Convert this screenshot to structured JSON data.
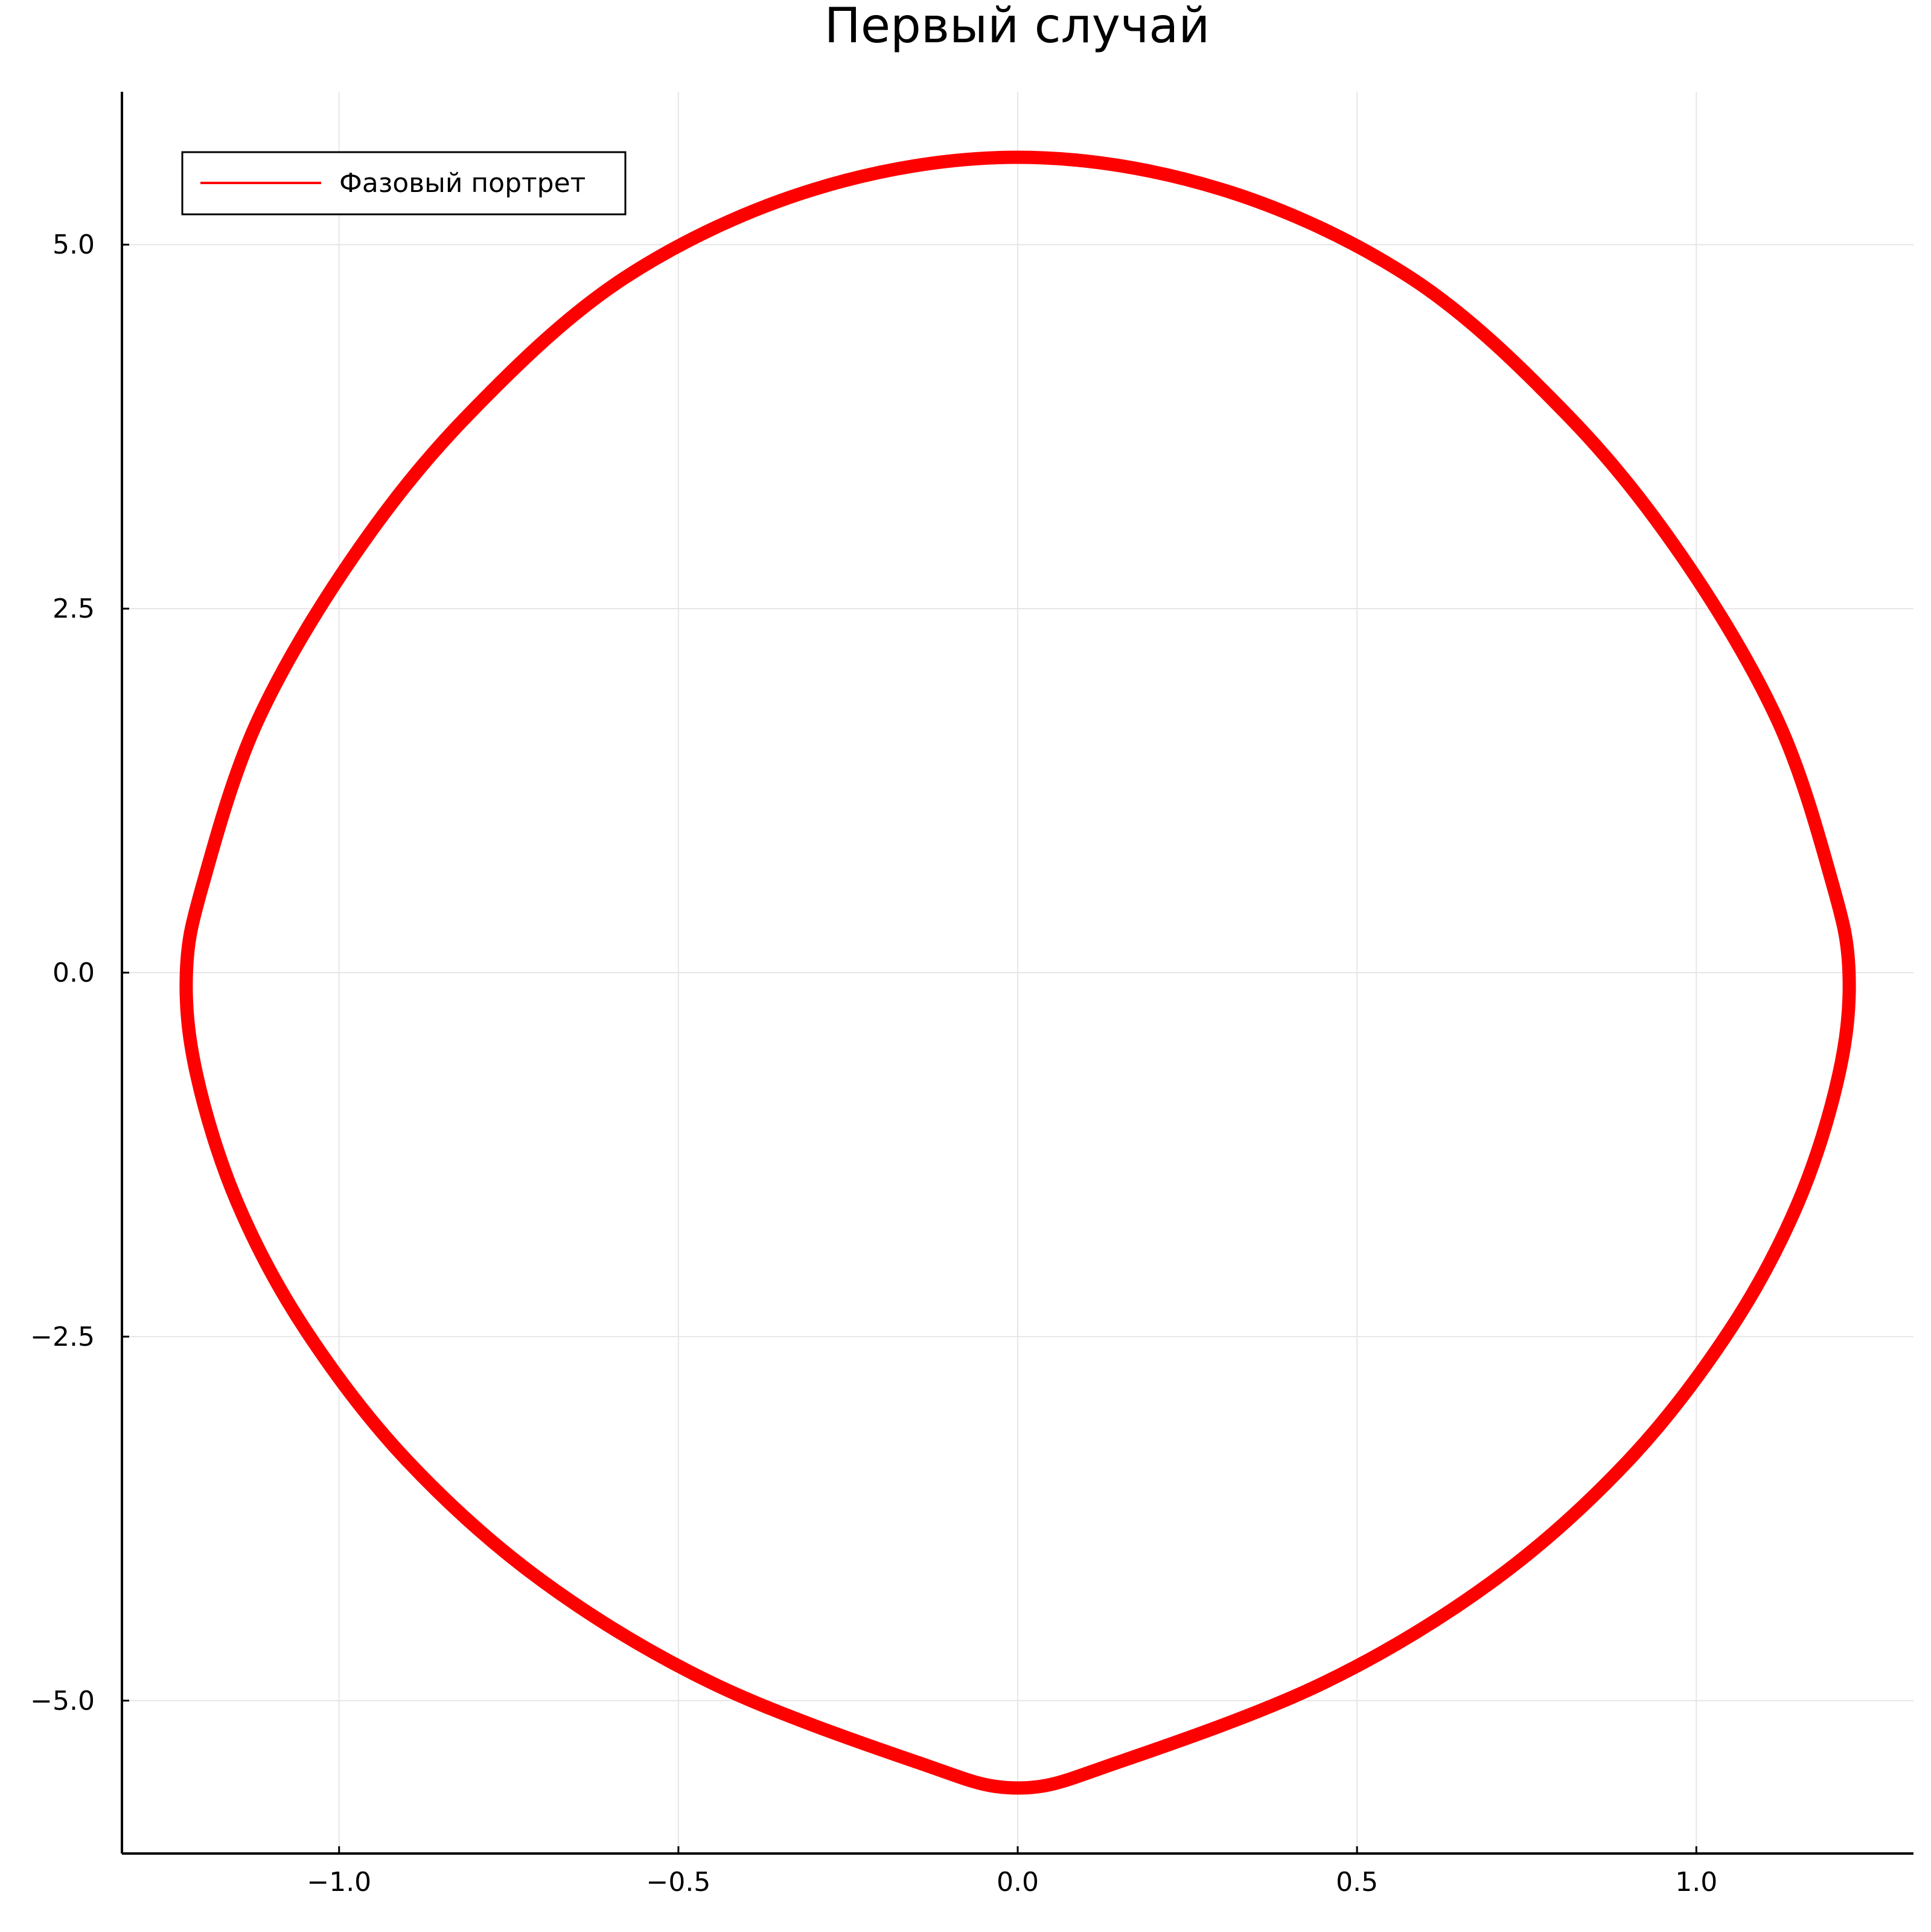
{
  "chart_data": {
    "type": "line",
    "title": "Первый случай",
    "xlabel": "",
    "ylabel": "",
    "xlim": [
      -1.32,
      1.32
    ],
    "ylim": [
      -6.05,
      6.05
    ],
    "xticks": [
      -1.0,
      -0.5,
      0.0,
      0.5,
      1.0
    ],
    "xtick_labels": [
      "−1.0",
      "−0.5",
      "0.0",
      "0.5",
      "1.0"
    ],
    "yticks": [
      -5.0,
      -2.5,
      0.0,
      2.5,
      5.0
    ],
    "ytick_labels": [
      "−5.0",
      "−2.5",
      "0.0",
      "2.5",
      "5.0"
    ],
    "grid": true,
    "legend": {
      "position": "top-left"
    },
    "series": [
      {
        "name": "Фазовый портрет",
        "color": "#ff0000",
        "x": [
          0.0,
          0.3,
          0.58,
          0.81,
          0.98,
          1.12,
          1.2,
          1.225,
          1.21,
          1.15,
          1.05,
          0.9,
          0.7,
          0.45,
          0.15,
          0.0,
          -0.15,
          -0.45,
          -0.7,
          -0.9,
          -1.05,
          -1.15,
          -1.21,
          -1.225,
          -1.2,
          -1.12,
          -0.98,
          -0.81,
          -0.58,
          -0.3,
          0.0
        ],
        "y": [
          5.6,
          5.38,
          4.77,
          3.83,
          2.85,
          1.73,
          0.62,
          0.0,
          -0.7,
          -1.58,
          -2.45,
          -3.35,
          -4.18,
          -4.88,
          -5.42,
          -5.6,
          -5.42,
          -4.88,
          -4.18,
          -3.35,
          -2.45,
          -1.58,
          -0.7,
          0.0,
          0.62,
          1.73,
          2.85,
          3.83,
          4.77,
          5.38,
          5.6
        ]
      }
    ]
  }
}
